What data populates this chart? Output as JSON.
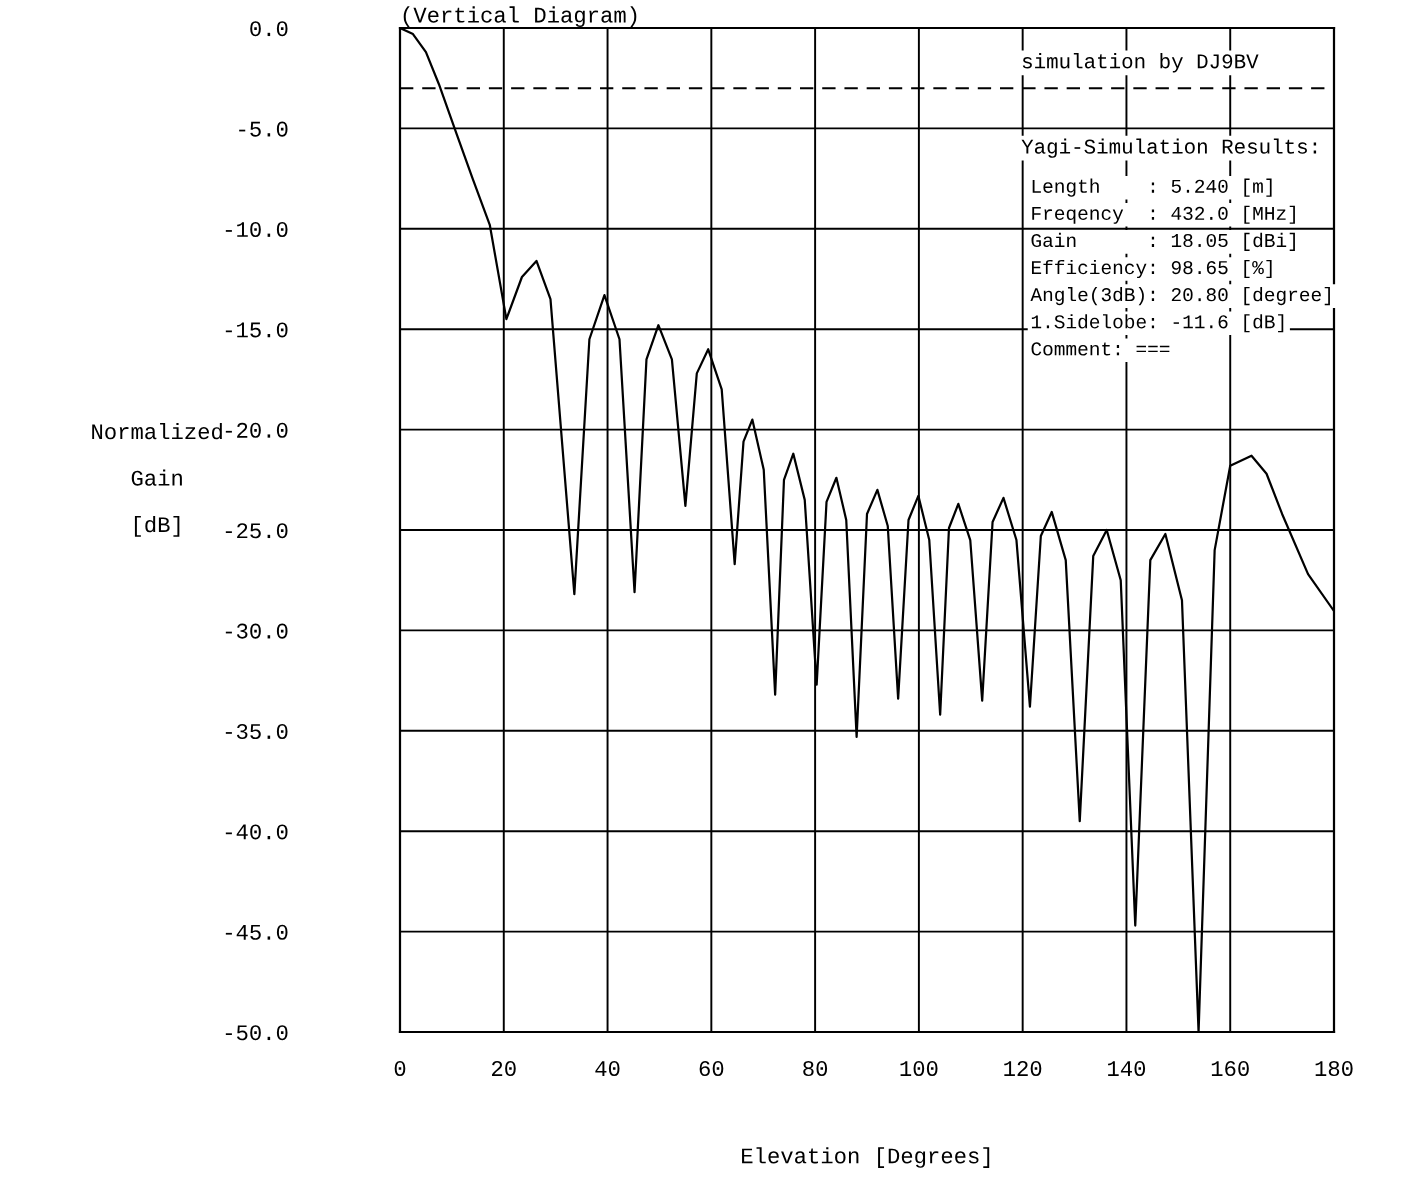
{
  "chart_data": {
    "type": "line",
    "title": "(Vertical Diagram)",
    "xlabel": "Elevation [Degrees]",
    "ylabel": "Normalized\nGain\n[dB]",
    "series": [
      {
        "color": "#000000",
        "x": [
          0,
          2.5,
          5,
          7.5,
          10.8,
          14,
          17.3,
          20.5,
          23.5,
          26.3,
          29,
          33.6,
          36.5,
          39.4,
          42.3,
          45.2,
          47.5,
          49.8,
          52.4,
          55,
          57.2,
          59.4,
          62,
          64.5,
          66.2,
          67.9,
          70.1,
          72.3,
          74,
          75.8,
          78,
          80.3,
          82.2,
          84.1,
          86,
          88,
          90,
          92,
          94,
          96,
          98,
          99.9,
          102,
          104.1,
          105.8,
          107.6,
          109.9,
          112.2,
          114.2,
          116.3,
          118.8,
          121.4,
          123.5,
          125.6,
          128.3,
          131,
          133.6,
          136.2,
          138.9,
          141.7,
          144.6,
          147.5,
          150.7,
          153.9,
          157,
          160,
          164.1,
          167,
          170,
          175,
          179.9
        ],
        "values": [
          0,
          -0.3,
          -1.2,
          -2.8,
          -5.2,
          -7.5,
          -9.8,
          -14.5,
          -12.4,
          -11.6,
          -13.5,
          -28.2,
          -15.5,
          -13.3,
          -15.5,
          -28.1,
          -16.5,
          -14.8,
          -16.5,
          -23.8,
          -17.2,
          -16,
          -18,
          -26.7,
          -20.6,
          -19.5,
          -22,
          -33.2,
          -22.5,
          -21.2,
          -23.5,
          -32.7,
          -23.6,
          -22.4,
          -24.5,
          -35.3,
          -24.2,
          -23,
          -24.8,
          -33.4,
          -24.5,
          -23.3,
          -25.5,
          -34.2,
          -24.9,
          -23.7,
          -25.5,
          -33.5,
          -24.6,
          -23.4,
          -25.5,
          -33.8,
          -25.3,
          -24.1,
          -26.5,
          -39.5,
          -26.3,
          -25,
          -27.5,
          -44.7,
          -26.5,
          -25.2,
          -28.5,
          -50,
          -26,
          -21.8,
          -21.3,
          -22.2,
          -24.2,
          -27.2,
          -29
        ]
      }
    ],
    "xlim": [
      0,
      180
    ],
    "xticks": [
      0,
      20,
      40,
      60,
      80,
      100,
      120,
      140,
      160,
      180
    ],
    "ylim": [
      -50,
      0
    ],
    "yticks": [
      {
        "value": 0,
        "label": "0.0"
      },
      {
        "value": -5,
        "label": "-5.0"
      },
      {
        "value": -10,
        "label": "-10.0"
      },
      {
        "value": -15,
        "label": "-15.0"
      },
      {
        "value": -20,
        "label": "-20.0"
      },
      {
        "value": -25,
        "label": "-25.0"
      },
      {
        "value": -30,
        "label": "-30.0"
      },
      {
        "value": -35,
        "label": "-35.0"
      },
      {
        "value": -40,
        "label": "-40.0"
      },
      {
        "value": -45,
        "label": "-45.0"
      },
      {
        "value": -50,
        "label": "-50.0"
      }
    ],
    "grid": true,
    "line_style": "solid",
    "marker": "none",
    "ref_lines": [
      {
        "axis": "y",
        "value": -3,
        "color": "#000000",
        "line_style": "dashed"
      }
    ],
    "annotations": [
      "simulation by DJ9BV",
      "Yagi-Simulation Results:",
      "Length    : 5.240 [m]",
      "Freqency  : 432.0 [MHz]",
      "Gain      : 18.05 [dBi]",
      "Efficiency: 98.65 [%]",
      "Angle(3dB): 20.80 [degree]",
      "1.Sidelobe: -11.6 [dB]",
      "Comment: ==="
    ]
  }
}
